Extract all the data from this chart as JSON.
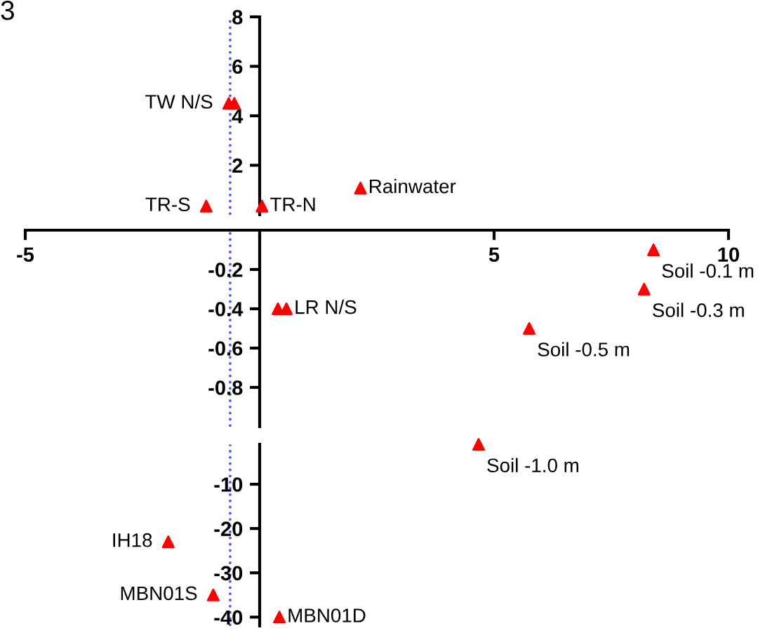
{
  "chart_data": [
    {
      "type": "scatter",
      "title": "3",
      "xlim": [
        -5,
        10
      ],
      "ylim": [
        0,
        8
      ],
      "yticks": [
        2,
        4,
        6,
        8
      ],
      "tick_labels": "y",
      "marker": "triangle",
      "grid": false,
      "x": [
        -0.66,
        -0.54,
        -1.14,
        0.05,
        2.15
      ],
      "series": [
        {
          "color": "#ff0000",
          "values": [
            4.5,
            4.5,
            0.35,
            0.35,
            1.08
          ]
        }
      ],
      "ref_lines": [
        {
          "axis": "x",
          "value": -0.63,
          "color": "#4d4dff",
          "line_style": "dotted"
        }
      ],
      "annotations": [
        {
          "text": "TW N/S",
          "x": -0.66,
          "y": 4.5
        },
        {
          "text": "TR-S",
          "x": -1.14,
          "y": 0.35
        },
        {
          "text": "TR-N",
          "x": 0.05,
          "y": 0.35
        },
        {
          "text": "Rainwater",
          "x": 2.15,
          "y": 1.08
        }
      ]
    },
    {
      "type": "scatter",
      "xlim": [
        -5,
        10
      ],
      "xticks": [
        -5,
        {
          "value": 0,
          "label": null
        },
        5,
        10
      ],
      "ylim": [
        -1,
        0
      ],
      "yticks": [
        -0.2,
        -0.4,
        -0.6,
        -0.8
      ],
      "marker": "triangle",
      "grid": false,
      "x": [
        0.39,
        0.57,
        8.4,
        8.2,
        5.75
      ],
      "series": [
        {
          "color": "#ff0000",
          "values": [
            -0.4,
            -0.4,
            -0.1,
            -0.3,
            -0.5
          ]
        }
      ],
      "ref_lines": [
        {
          "axis": "x",
          "value": -0.63,
          "color": "#4d4dff",
          "line_style": "dotted"
        }
      ],
      "annotations": [
        {
          "text": "LR N/S",
          "x": 0.57,
          "y": -0.4
        },
        {
          "text": "Soil -0.1 m",
          "x": 8.4,
          "y": -0.1
        },
        {
          "text": "Soil -0.3 m",
          "x": 8.2,
          "y": -0.3
        },
        {
          "text": "Soil -0.5 m",
          "x": 5.75,
          "y": -0.5
        }
      ]
    },
    {
      "type": "scatter",
      "xlim": [
        -5,
        10
      ],
      "ylim": [
        -42,
        -1
      ],
      "yticks": [
        -10,
        -20,
        -30,
        -40
      ],
      "tick_labels": "y",
      "marker": "triangle",
      "grid": false,
      "x": [
        4.67,
        -1.95,
        -0.99,
        0.42
      ],
      "series": [
        {
          "color": "#ff0000",
          "values": [
            -1.0,
            -23,
            -35,
            -40
          ]
        }
      ],
      "ref_lines": [
        {
          "axis": "x",
          "value": -0.63,
          "color": "#4d4dff",
          "line_style": "dotted"
        }
      ],
      "annotations": [
        {
          "text": "Soil -1.0 m",
          "x": 4.67,
          "y": -1.0
        },
        {
          "text": "IH18",
          "x": -1.95,
          "y": -23
        },
        {
          "text": "MBN01S",
          "x": -0.99,
          "y": -35
        },
        {
          "text": "MBN01D",
          "x": 0.42,
          "y": -40
        }
      ]
    }
  ]
}
